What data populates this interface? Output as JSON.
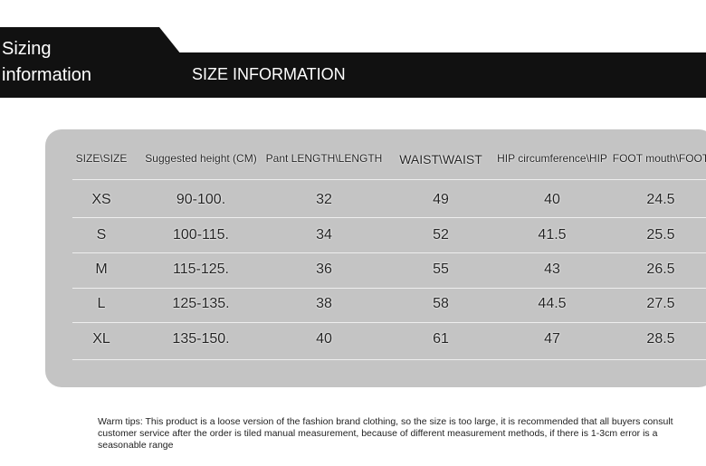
{
  "tab_label": "Sizing information",
  "banner": "SIZE INFORMATION",
  "table": {
    "headers": [
      "SIZE\\SIZE",
      "Suggested height (CM)",
      "Pant LENGTH\\LENGTH",
      "WAIST\\WAIST",
      "HIP circumference\\HIP",
      "FOOT mouth\\FOOT"
    ],
    "rows": [
      [
        "XS",
        "90-100.",
        "32",
        "49",
        "40",
        "24.5"
      ],
      [
        "S",
        "100-115.",
        "34",
        "52",
        "41.5",
        "25.5"
      ],
      [
        "M",
        "115-125.",
        "36",
        "55",
        "43",
        "26.5"
      ],
      [
        "L",
        "125-135.",
        "38",
        "58",
        "44.5",
        "27.5"
      ],
      [
        "XL",
        "135-150.",
        "40",
        "61",
        "47",
        "28.5"
      ]
    ]
  },
  "tips": "Warm tips: This product is a loose version of the fashion brand clothing, so the size is too large, it is recommended that all buyers consult customer service after the order is tiled manual measurement, because of different measurement methods, if there is 1-3cm error is a seasonable range"
}
